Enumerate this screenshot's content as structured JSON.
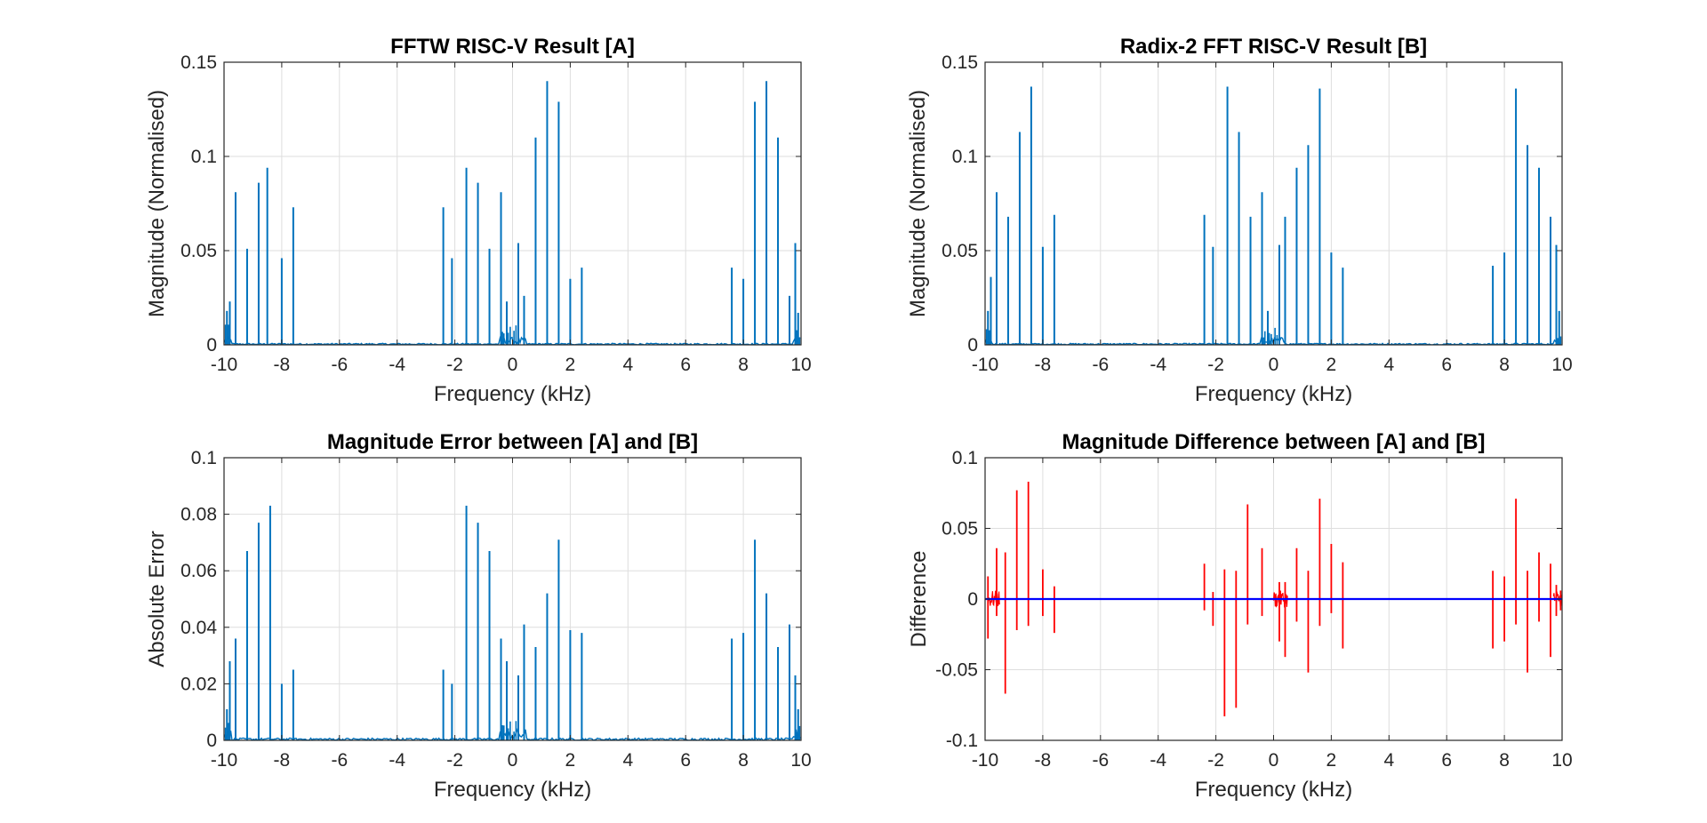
{
  "chart_data": [
    {
      "type": "line",
      "title": "FFTW RISC-V Result [A]",
      "xlabel": "Frequency (kHz)",
      "ylabel": "Magnitude (Normalised)",
      "xlim": [
        -10,
        10
      ],
      "ylim": [
        0,
        0.15
      ],
      "xticks": [
        -10,
        -8,
        -6,
        -4,
        -2,
        0,
        2,
        4,
        6,
        8,
        10
      ],
      "yticks": [
        0,
        0.05,
        0.1,
        0.15
      ],
      "ytick_labels": [
        "0",
        "0.05",
        "0.1",
        "0.15"
      ],
      "grid": true,
      "series": [
        {
          "color": "#0072bd",
          "peaks": [
            [
              -9.9,
              0.018
            ],
            [
              -9.8,
              0.023
            ],
            [
              -9.6,
              0.081
            ],
            [
              -9.2,
              0.051
            ],
            [
              -8.8,
              0.086
            ],
            [
              -8.5,
              0.094
            ],
            [
              -8.0,
              0.046
            ],
            [
              -7.6,
              0.073
            ],
            [
              -2.4,
              0.073
            ],
            [
              -2.1,
              0.046
            ],
            [
              -1.6,
              0.094
            ],
            [
              -1.2,
              0.086
            ],
            [
              -0.8,
              0.051
            ],
            [
              -0.4,
              0.081
            ],
            [
              -0.2,
              0.023
            ],
            [
              0.2,
              0.054
            ],
            [
              0.4,
              0.026
            ],
            [
              0.8,
              0.11
            ],
            [
              1.2,
              0.14
            ],
            [
              1.6,
              0.129
            ],
            [
              2.0,
              0.035
            ],
            [
              2.4,
              0.041
            ],
            [
              7.6,
              0.041
            ],
            [
              8.0,
              0.035
            ],
            [
              8.4,
              0.129
            ],
            [
              8.8,
              0.14
            ],
            [
              9.2,
              0.11
            ],
            [
              9.6,
              0.026
            ],
            [
              9.8,
              0.054
            ],
            [
              9.9,
              0.017
            ]
          ]
        }
      ]
    },
    {
      "type": "line",
      "title": "Radix-2 FFT RISC-V Result [B]",
      "xlabel": "Frequency (kHz)",
      "ylabel": "Magnitude (Normalised)",
      "xlim": [
        -10,
        10
      ],
      "ylim": [
        0,
        0.15
      ],
      "xticks": [
        -10,
        -8,
        -6,
        -4,
        -2,
        0,
        2,
        4,
        6,
        8,
        10
      ],
      "yticks": [
        0,
        0.05,
        0.1,
        0.15
      ],
      "ytick_labels": [
        "0",
        "0.05",
        "0.1",
        "0.15"
      ],
      "grid": true,
      "series": [
        {
          "color": "#0072bd",
          "peaks": [
            [
              -9.9,
              0.018
            ],
            [
              -9.8,
              0.036
            ],
            [
              -9.6,
              0.081
            ],
            [
              -9.2,
              0.068
            ],
            [
              -8.8,
              0.113
            ],
            [
              -8.4,
              0.137
            ],
            [
              -8.0,
              0.052
            ],
            [
              -7.6,
              0.069
            ],
            [
              -2.4,
              0.069
            ],
            [
              -2.1,
              0.052
            ],
            [
              -1.6,
              0.137
            ],
            [
              -1.2,
              0.113
            ],
            [
              -0.8,
              0.068
            ],
            [
              -0.4,
              0.081
            ],
            [
              -0.2,
              0.018
            ],
            [
              0.2,
              0.053
            ],
            [
              0.4,
              0.068
            ],
            [
              0.8,
              0.094
            ],
            [
              1.2,
              0.106
            ],
            [
              1.6,
              0.136
            ],
            [
              2.0,
              0.049
            ],
            [
              2.4,
              0.041
            ],
            [
              7.6,
              0.042
            ],
            [
              8.0,
              0.049
            ],
            [
              8.4,
              0.136
            ],
            [
              8.8,
              0.106
            ],
            [
              9.2,
              0.094
            ],
            [
              9.6,
              0.068
            ],
            [
              9.8,
              0.053
            ],
            [
              9.9,
              0.018
            ]
          ]
        }
      ]
    },
    {
      "type": "line",
      "title": "Magnitude Error between [A] and [B]",
      "xlabel": "Frequency (kHz)",
      "ylabel": "Absolute Error",
      "xlim": [
        -10,
        10
      ],
      "ylim": [
        0,
        0.1
      ],
      "xticks": [
        -10,
        -8,
        -6,
        -4,
        -2,
        0,
        2,
        4,
        6,
        8,
        10
      ],
      "yticks": [
        0,
        0.02,
        0.04,
        0.06,
        0.08,
        0.1
      ],
      "ytick_labels": [
        "0",
        "0.02",
        "0.04",
        "0.06",
        "0.08",
        "0.1"
      ],
      "grid": true,
      "series": [
        {
          "color": "#0072bd",
          "peaks": [
            [
              -9.9,
              0.011
            ],
            [
              -9.8,
              0.028
            ],
            [
              -9.6,
              0.036
            ],
            [
              -9.2,
              0.067
            ],
            [
              -8.8,
              0.077
            ],
            [
              -8.4,
              0.083
            ],
            [
              -8.0,
              0.02
            ],
            [
              -7.6,
              0.025
            ],
            [
              -2.4,
              0.025
            ],
            [
              -2.1,
              0.02
            ],
            [
              -1.6,
              0.083
            ],
            [
              -1.2,
              0.077
            ],
            [
              -0.8,
              0.067
            ],
            [
              -0.4,
              0.036
            ],
            [
              -0.2,
              0.028
            ],
            [
              0.2,
              0.023
            ],
            [
              0.4,
              0.041
            ],
            [
              0.8,
              0.033
            ],
            [
              1.2,
              0.052
            ],
            [
              1.6,
              0.071
            ],
            [
              2.0,
              0.039
            ],
            [
              2.4,
              0.038
            ],
            [
              7.6,
              0.036
            ],
            [
              8.0,
              0.038
            ],
            [
              8.4,
              0.071
            ],
            [
              8.8,
              0.052
            ],
            [
              9.2,
              0.033
            ],
            [
              9.6,
              0.041
            ],
            [
              9.8,
              0.023
            ],
            [
              9.9,
              0.011
            ]
          ]
        }
      ]
    },
    {
      "type": "line",
      "title": "Magnitude Difference between [A] and [B]",
      "xlabel": "Frequency (kHz)",
      "ylabel": "Difference",
      "xlim": [
        -10,
        10
      ],
      "ylim": [
        -0.1,
        0.1
      ],
      "xticks": [
        -10,
        -8,
        -6,
        -4,
        -2,
        0,
        2,
        4,
        6,
        8,
        10
      ],
      "yticks": [
        -0.1,
        -0.05,
        0,
        0.05,
        0.1
      ],
      "ytick_labels": [
        "-0.1",
        "-0.05",
        "0",
        "0.05",
        "0.1"
      ],
      "grid": true,
      "series": [
        {
          "color": "#ff0000",
          "spikes": [
            [
              -9.9,
              -0.028,
              0.016
            ],
            [
              -9.6,
              -0.012,
              0.036
            ],
            [
              -9.3,
              -0.067,
              0.033
            ],
            [
              -8.9,
              -0.022,
              0.077
            ],
            [
              -8.5,
              -0.019,
              0.083
            ],
            [
              -8.0,
              -0.012,
              0.021
            ],
            [
              -7.6,
              -0.024,
              0.009
            ],
            [
              -2.4,
              -0.008,
              0.025
            ],
            [
              -2.1,
              -0.019,
              0.005
            ],
            [
              -1.7,
              -0.083,
              0.021
            ],
            [
              -1.3,
              -0.077,
              0.02
            ],
            [
              -0.9,
              -0.018,
              0.067
            ],
            [
              -0.4,
              -0.012,
              0.036
            ],
            [
              0.2,
              -0.03,
              0.012
            ],
            [
              0.4,
              -0.041,
              0.012
            ],
            [
              0.8,
              -0.016,
              0.036
            ],
            [
              1.2,
              -0.052,
              0.02
            ],
            [
              1.6,
              -0.019,
              0.071
            ],
            [
              2.0,
              -0.01,
              0.039
            ],
            [
              2.4,
              -0.035,
              0.026
            ],
            [
              7.6,
              -0.035,
              0.02
            ],
            [
              8.0,
              -0.03,
              0.016
            ],
            [
              8.4,
              -0.018,
              0.071
            ],
            [
              8.8,
              -0.052,
              0.02
            ],
            [
              9.2,
              -0.016,
              0.033
            ],
            [
              9.6,
              -0.041,
              0.025
            ],
            [
              9.8,
              -0.012,
              0.01
            ],
            [
              9.95,
              -0.008,
              0.006
            ]
          ]
        },
        {
          "color": "#0000ff",
          "values": [
            0,
            0
          ]
        }
      ]
    }
  ]
}
